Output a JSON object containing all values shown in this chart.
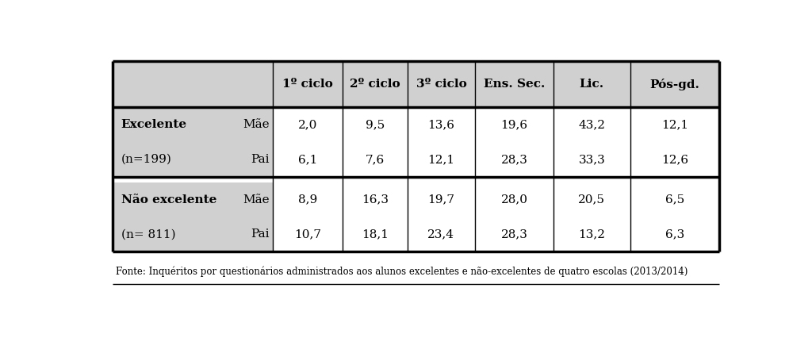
{
  "col_headers": [
    "1º ciclo",
    "2º ciclo",
    "3º ciclo",
    "Ens. Sec.",
    "Lic.",
    "Pós-gd."
  ],
  "row_groups": [
    {
      "label1": "Excelente",
      "label2": "(n=199)",
      "rows": [
        {
          "sub": "Mãe",
          "values": [
            "2,0",
            "9,5",
            "13,6",
            "19,6",
            "43,2",
            "12,1"
          ]
        },
        {
          "sub": "Pai",
          "values": [
            "6,1",
            "7,6",
            "12,1",
            "28,3",
            "33,3",
            "12,6"
          ]
        }
      ]
    },
    {
      "label1": "Não excelente",
      "label2": "(n= 811)",
      "rows": [
        {
          "sub": "Mãe",
          "values": [
            "8,9",
            "16,3",
            "19,7",
            "28,0",
            "20,5",
            "6,5"
          ]
        },
        {
          "sub": "Pai",
          "values": [
            "10,7",
            "18,1",
            "23,4",
            "28,3",
            "13,2",
            "6,3"
          ]
        }
      ]
    }
  ],
  "footer": "Fonte: Inquéritos por questionários administrados aos alunos excelentes e não-excelentes de quatro escolas (2013/2014)",
  "bg_color": "#ffffff",
  "header_bg": "#d0d0d0",
  "thick_lw": 2.5,
  "thin_lw": 1.0
}
